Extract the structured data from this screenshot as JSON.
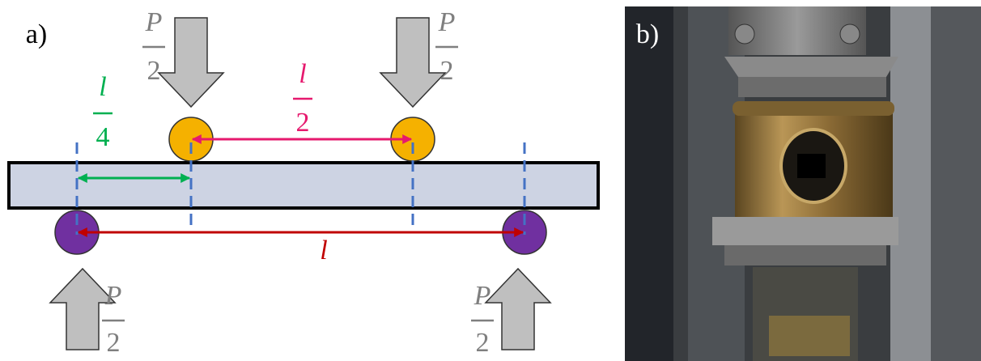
{
  "panel_a": {
    "label": "a)",
    "loads": [
      {
        "numerator": "P",
        "denominator": "2"
      },
      {
        "numerator": "P",
        "denominator": "2"
      },
      {
        "numerator": "P",
        "denominator": "2"
      },
      {
        "numerator": "P",
        "denominator": "2"
      }
    ],
    "dimensions": [
      {
        "numerator": "l",
        "denominator": "4"
      },
      {
        "numerator": "l",
        "denominator": "2"
      },
      {
        "label": "l"
      }
    ]
  },
  "panel_b": {
    "label": "b)"
  }
}
